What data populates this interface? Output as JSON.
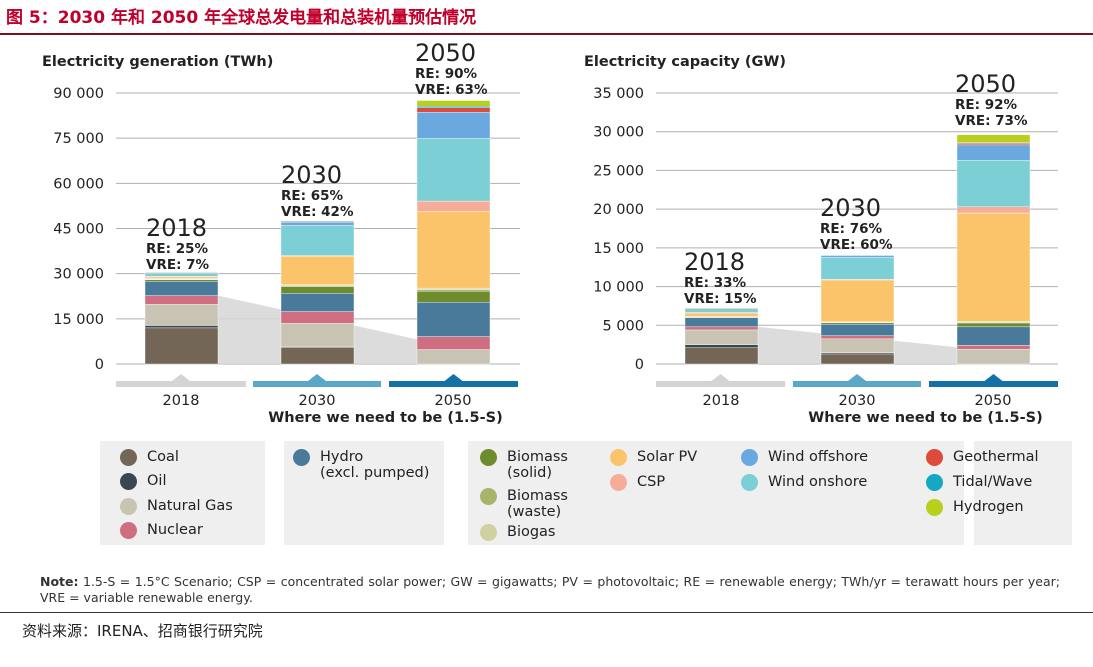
{
  "figure_title": "图 5：2030 年和 2050 年全球总发电量和总装机量预估情况",
  "note": {
    "label": "Note:",
    "text": " 1.5-S = 1.5°C Scenario; CSP = concentrated solar power; GW = gigawatts; PV = photovoltaic; RE = renewable energy; TWh/yr = terawatt hours per year; VRE = variable renewable energy."
  },
  "source": "资料来源：IRENA、招商银行研究院",
  "colors": {
    "Coal": "#736656",
    "Oil": "#3b4650",
    "Natural Gas": "#c8c3b2",
    "Nuclear": "#cf6e80",
    "Hydro": "#4a7a99",
    "Biomass (solid)": "#6e8c2e",
    "Biomass (waste)": "#a8b46a",
    "Biogas": "#d1d0a0",
    "Solar PV": "#fbc46a",
    "CSP": "#f5ad9a",
    "Wind offshore": "#6aa8df",
    "Wind onshore": "#7ccfd5",
    "Geothermal": "#dd4b3a",
    "Tidal/Wave": "#13a8c4",
    "Hydrogen": "#b9cf1e"
  },
  "legend": [
    {
      "key": "Coal",
      "label": "Coal"
    },
    {
      "key": "Oil",
      "label": "Oil"
    },
    {
      "key": "Natural Gas",
      "label": "Natural Gas"
    },
    {
      "key": "Nuclear",
      "label": "Nuclear"
    },
    {
      "key": "Hydro",
      "label": "Hydro\n(excl. pumped)"
    },
    {
      "key": "Biomass (solid)",
      "label": "Biomass\n(solid)"
    },
    {
      "key": "Biomass (waste)",
      "label": "Biomass\n(waste)"
    },
    {
      "key": "Biogas",
      "label": "Biogas"
    },
    {
      "key": "Solar PV",
      "label": "Solar PV"
    },
    {
      "key": "CSP",
      "label": "CSP"
    },
    {
      "key": "Wind offshore",
      "label": "Wind offshore"
    },
    {
      "key": "Wind onshore",
      "label": "Wind onshore"
    },
    {
      "key": "Geothermal",
      "label": "Geothermal"
    },
    {
      "key": "Tidal/Wave",
      "label": "Tidal/Wave"
    },
    {
      "key": "Hydrogen",
      "label": "Hydrogen"
    }
  ],
  "chart_data": [
    {
      "type": "bar",
      "stacked": true,
      "title": "Electricity generation (TWh)",
      "categories": [
        "2018",
        "2030",
        "2050"
      ],
      "xlabel": "Where we need to be (1.5-S)",
      "yticks": [
        0,
        15000,
        30000,
        45000,
        60000,
        75000,
        90000
      ],
      "ytick_labels": [
        "0",
        "15 000",
        "30 000",
        "45 000",
        "60 000",
        "75 000",
        "90 000"
      ],
      "ylim": [
        0,
        96000
      ],
      "grid": true,
      "bar_annotations": [
        {
          "year": "2018",
          "re": "RE: 25%",
          "vre": "VRE: 7%"
        },
        {
          "year": "2030",
          "re": "RE: 65%",
          "vre": "VRE: 42%"
        },
        {
          "year": "2050",
          "re": "RE: 90%",
          "vre": "VRE: 63%"
        }
      ],
      "series": [
        {
          "name": "Coal",
          "values": [
            12000,
            5500,
            0
          ]
        },
        {
          "name": "Oil",
          "values": [
            800,
            300,
            0
          ]
        },
        {
          "name": "Natural Gas",
          "values": [
            7000,
            7700,
            4800
          ]
        },
        {
          "name": "Nuclear",
          "values": [
            2900,
            3900,
            4300
          ]
        },
        {
          "name": "Hydro",
          "values": [
            4800,
            6100,
            11400
          ]
        },
        {
          "name": "Biomass (solid)",
          "values": [
            500,
            2200,
            3700
          ]
        },
        {
          "name": "Biomass (waste)",
          "values": [
            200,
            300,
            500
          ]
        },
        {
          "name": "Biogas",
          "values": [
            200,
            300,
            500
          ]
        },
        {
          "name": "Solar PV",
          "values": [
            600,
            9500,
            25500
          ]
        },
        {
          "name": "CSP",
          "values": [
            100,
            200,
            3400
          ]
        },
        {
          "name": "Wind onshore",
          "values": [
            1200,
            10000,
            20800
          ]
        },
        {
          "name": "Wind offshore",
          "values": [
            100,
            1100,
            8700
          ]
        },
        {
          "name": "Geothermal",
          "values": [
            100,
            300,
            1500
          ]
        },
        {
          "name": "Tidal/Wave",
          "values": [
            0,
            100,
            500
          ]
        },
        {
          "name": "Hydrogen",
          "values": [
            0,
            0,
            1900
          ]
        }
      ]
    },
    {
      "type": "bar",
      "stacked": true,
      "title": "Electricity capacity (GW)",
      "categories": [
        "2018",
        "2030",
        "2050"
      ],
      "xlabel": "Where we need to be (1.5-S)",
      "yticks": [
        0,
        5000,
        10000,
        15000,
        20000,
        25000,
        30000,
        35000
      ],
      "ytick_labels": [
        "0",
        "5 000",
        "10 000",
        "15 000",
        "20 000",
        "25 000",
        "30 000",
        "35 000"
      ],
      "ylim": [
        0,
        37000
      ],
      "grid": true,
      "bar_annotations": [
        {
          "year": "2018",
          "re": "RE: 33%",
          "vre": "VRE: 15%"
        },
        {
          "year": "2030",
          "re": "RE: 76%",
          "vre": "VRE: 60%"
        },
        {
          "year": "2050",
          "re": "RE: 92%",
          "vre": "VRE: 73%"
        }
      ],
      "series": [
        {
          "name": "Coal",
          "values": [
            2100,
            1300,
            0
          ]
        },
        {
          "name": "Oil",
          "values": [
            400,
            150,
            0
          ]
        },
        {
          "name": "Natural Gas",
          "values": [
            1900,
            1800,
            1900
          ]
        },
        {
          "name": "Nuclear",
          "values": [
            400,
            400,
            500
          ]
        },
        {
          "name": "Hydro",
          "values": [
            1200,
            1500,
            2400
          ]
        },
        {
          "name": "Biomass (solid)",
          "values": [
            100,
            200,
            500
          ]
        },
        {
          "name": "Biomass (waste)",
          "values": [
            20,
            50,
            100
          ]
        },
        {
          "name": "Biogas",
          "values": [
            20,
            50,
            100
          ]
        },
        {
          "name": "Solar PV",
          "values": [
            500,
            5400,
            14000
          ]
        },
        {
          "name": "CSP",
          "values": [
            10,
            100,
            800
          ]
        },
        {
          "name": "Wind onshore",
          "values": [
            550,
            2800,
            6000
          ]
        },
        {
          "name": "Wind offshore",
          "values": [
            25,
            250,
            2000
          ]
        },
        {
          "name": "Geothermal",
          "values": [
            15,
            50,
            200
          ]
        },
        {
          "name": "Tidal/Wave",
          "values": [
            0,
            20,
            100
          ]
        },
        {
          "name": "Hydrogen",
          "values": [
            0,
            0,
            1000
          ]
        }
      ]
    }
  ]
}
